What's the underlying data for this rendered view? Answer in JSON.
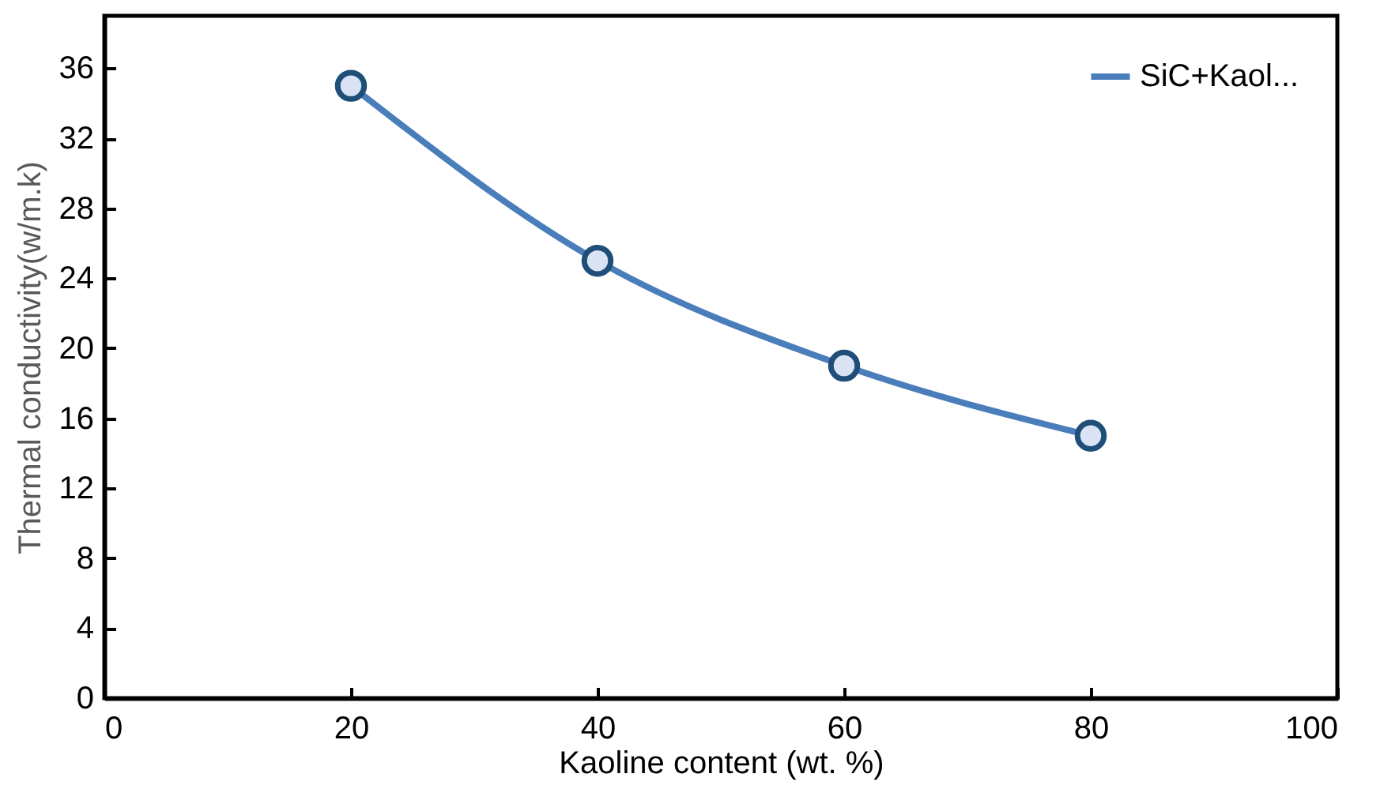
{
  "chart_data": {
    "type": "line",
    "xlabel": "Kaoline content (wt. %)",
    "ylabel": "Thermal conductivity(w/m.k)",
    "x": [
      20,
      40,
      60,
      80
    ],
    "series": [
      {
        "name": "SiC+Kaol...",
        "color": "#4a7ebb",
        "values": [
          35,
          25,
          19,
          15
        ]
      }
    ],
    "xlim": [
      0,
      100
    ],
    "xticks": [
      0,
      20,
      40,
      60,
      80,
      100
    ],
    "ylim": [
      0,
      39
    ],
    "yticks": [
      0,
      4,
      8,
      12,
      16,
      20,
      24,
      28,
      32,
      36
    ],
    "marker": "circle",
    "line_style": "solid",
    "legend": "top right",
    "grid": false
  }
}
